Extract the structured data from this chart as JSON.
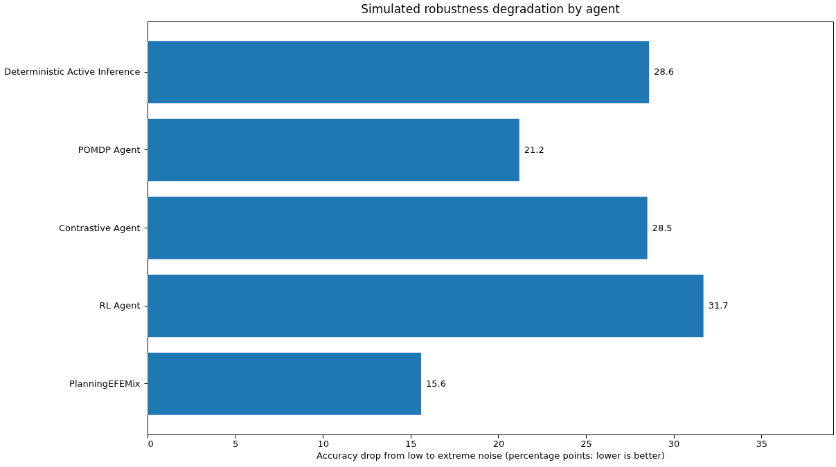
{
  "chart_data": {
    "type": "bar",
    "orientation": "horizontal",
    "title": "Simulated robustness degradation by agent",
    "xlabel": "Accuracy drop from low to extreme noise (percentage points; lower is better)",
    "categories": [
      "Deterministic Active Inference",
      "POMDP Agent",
      "Contrastive Agent",
      "RL Agent",
      "PlanningEFEMix"
    ],
    "values": [
      28.6,
      21.2,
      28.5,
      31.7,
      15.6
    ],
    "color": "#1f77b4",
    "xlim": [
      0,
      39.1
    ],
    "xticks": [
      0,
      5,
      10,
      15,
      20,
      25,
      30,
      35
    ],
    "data_labels": true,
    "grid": false
  }
}
